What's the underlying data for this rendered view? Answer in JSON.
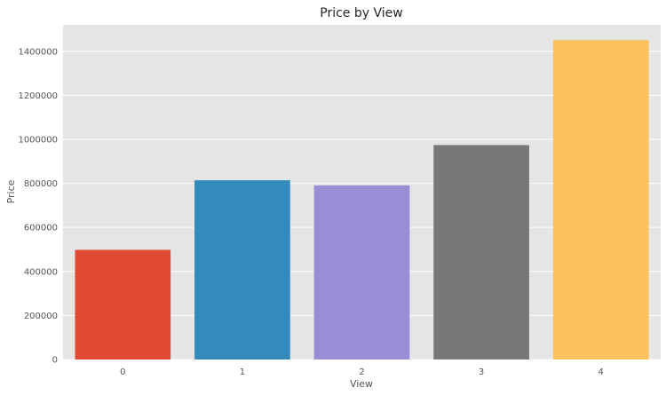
{
  "chart_data": {
    "type": "bar",
    "title": "Price by View",
    "xlabel": "View",
    "ylabel": "Price",
    "categories": [
      "0",
      "1",
      "2",
      "3",
      "4"
    ],
    "values": [
      498000,
      814000,
      791000,
      974000,
      1451000
    ],
    "colors": [
      "#e24a33",
      "#348abd",
      "#988ed5",
      "#777777",
      "#fbc15e"
    ],
    "ylim": [
      0,
      1520000
    ],
    "yticks": [
      0,
      200000,
      400000,
      600000,
      800000,
      1000000,
      1200000,
      1400000
    ],
    "ytick_labels": [
      "0",
      "200000",
      "400000",
      "600000",
      "800000",
      "1000000",
      "1200000",
      "1400000"
    ],
    "grid": true,
    "plot_background": "#e5e5e5",
    "grid_color": "#ffffff"
  }
}
